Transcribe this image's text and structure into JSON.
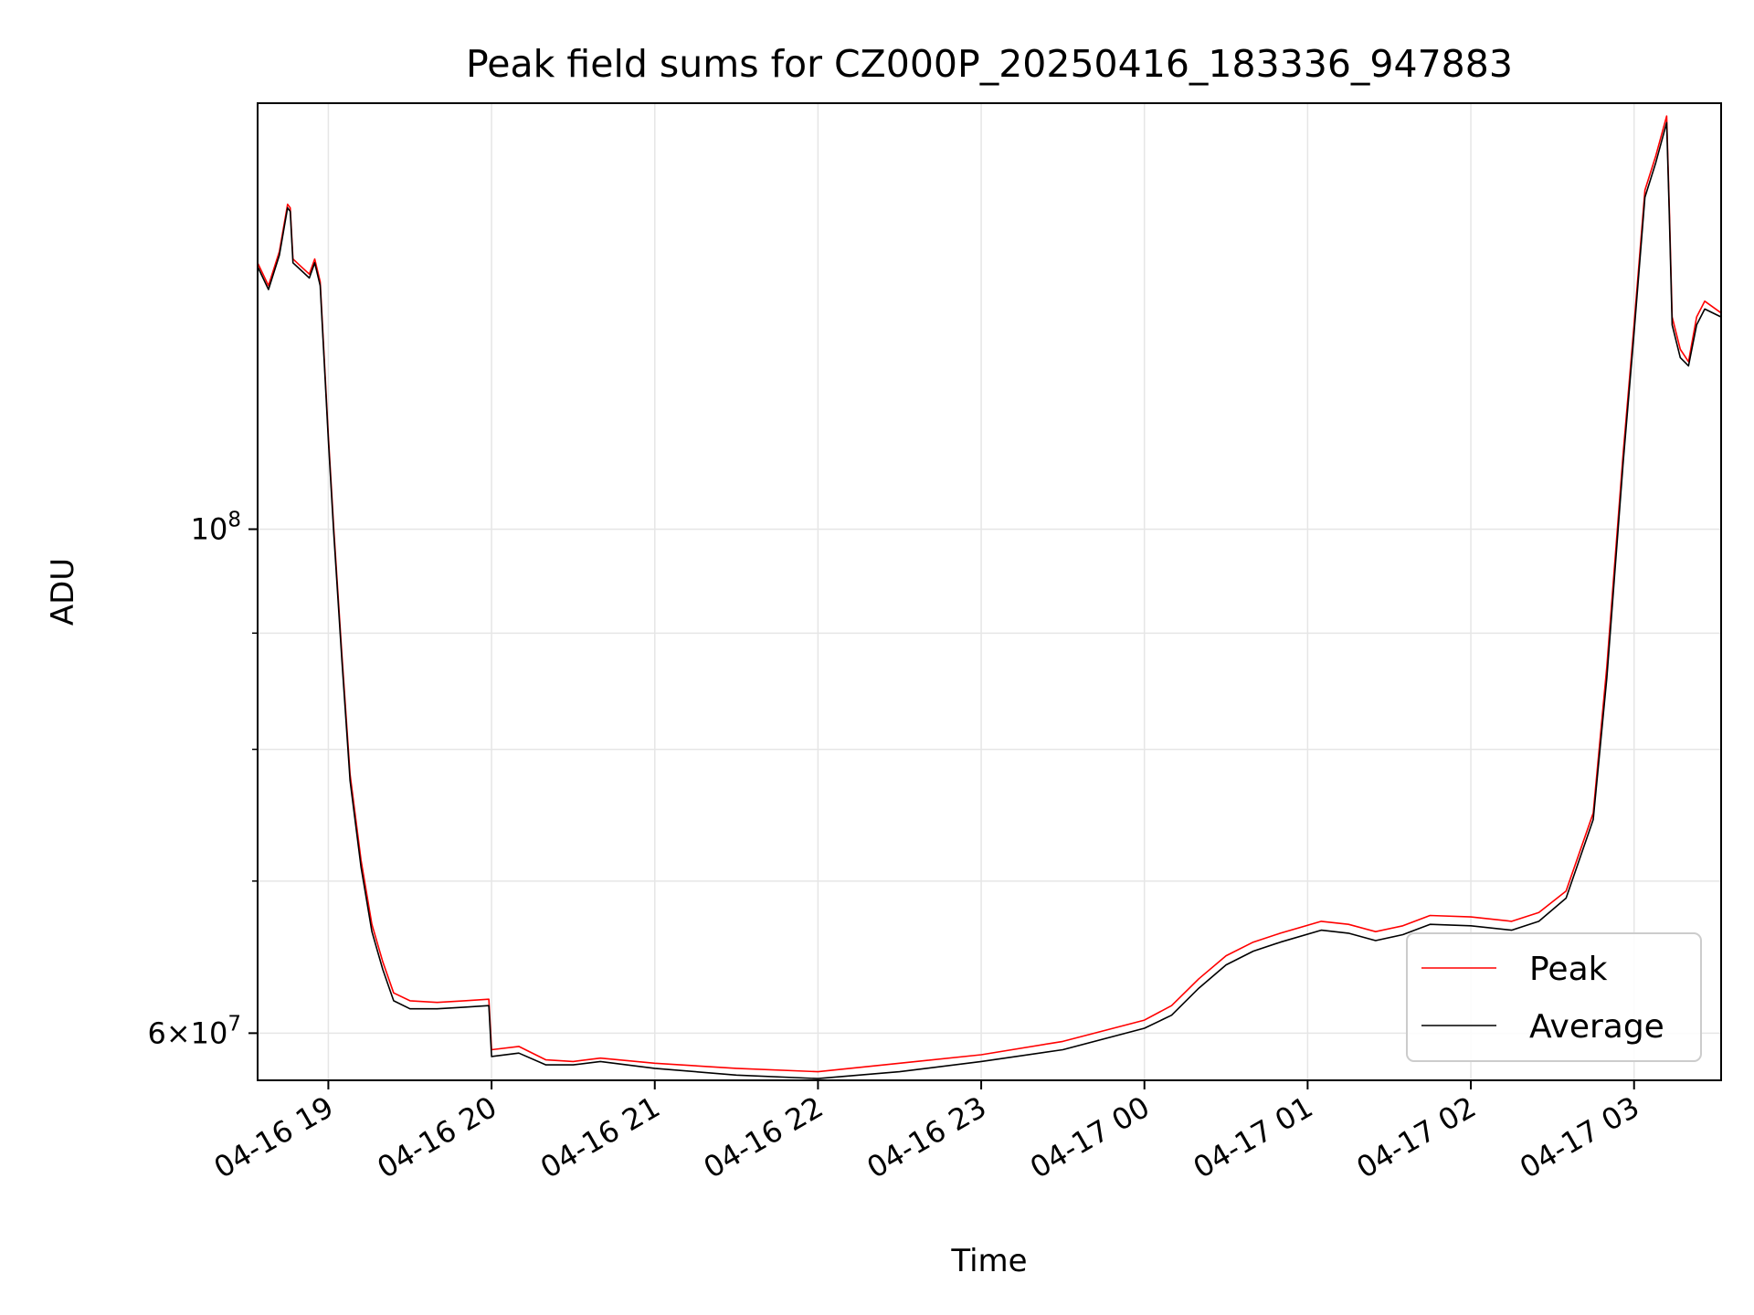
{
  "chart_data": {
    "type": "line",
    "title": "Peak field sums for CZ000P_20250416_183336_947883",
    "xlabel": "Time",
    "ylabel": "ADU",
    "y_scale": "log",
    "xlim": [
      "2025-04-16 18:34",
      "2025-04-17 03:32"
    ],
    "ylim": [
      57200000,
      154000000
    ],
    "x_ticks": [
      {
        "label": "04-16 19",
        "value": "2025-04-16 19:00"
      },
      {
        "label": "04-16 20",
        "value": "2025-04-16 20:00"
      },
      {
        "label": "04-16 21",
        "value": "2025-04-16 21:00"
      },
      {
        "label": "04-16 22",
        "value": "2025-04-16 22:00"
      },
      {
        "label": "04-16 23",
        "value": "2025-04-16 23:00"
      },
      {
        "label": "04-17 00",
        "value": "2025-04-17 00:00"
      },
      {
        "label": "04-17 01",
        "value": "2025-04-17 01:00"
      },
      {
        "label": "04-17 02",
        "value": "2025-04-17 02:00"
      },
      {
        "label": "04-17 03",
        "value": "2025-04-17 03:00"
      }
    ],
    "y_major_ticks": [
      {
        "base": "10",
        "exp": "8",
        "value": 100000000
      },
      {
        "mantissa": "6",
        "base": "10",
        "exp": "7",
        "value": 60000000
      }
    ],
    "y_minor_ticks": [
      70000000,
      80000000,
      90000000
    ],
    "grid": true,
    "legend": {
      "placement": "lower right"
    },
    "series": [
      {
        "name": "Peak",
        "color": "#ff0000",
        "points": [
          [
            "2025-04-16 18:34",
            131000000
          ],
          [
            "2025-04-16 18:38",
            128000000
          ],
          [
            "2025-04-16 18:42",
            132500000
          ],
          [
            "2025-04-16 18:45",
            139000000
          ],
          [
            "2025-04-16 18:46",
            138500000
          ],
          [
            "2025-04-16 18:47",
            131500000
          ],
          [
            "2025-04-16 18:50",
            130500000
          ],
          [
            "2025-04-16 18:53",
            129500000
          ],
          [
            "2025-04-16 18:55",
            131500000
          ],
          [
            "2025-04-16 18:57",
            128500000
          ],
          [
            "2025-04-16 19:00",
            110000000
          ],
          [
            "2025-04-16 19:02",
            100000000
          ],
          [
            "2025-04-16 19:05",
            88000000
          ],
          [
            "2025-04-16 19:08",
            78000000
          ],
          [
            "2025-04-16 19:12",
            71500000
          ],
          [
            "2025-04-16 19:16",
            67000000
          ],
          [
            "2025-04-16 19:20",
            64500000
          ],
          [
            "2025-04-16 19:24",
            62500000
          ],
          [
            "2025-04-16 19:30",
            62000000
          ],
          [
            "2025-04-16 19:40",
            61900000
          ],
          [
            "2025-04-16 19:50",
            62000000
          ],
          [
            "2025-04-16 19:59",
            62100000
          ],
          [
            "2025-04-16 20:00",
            59000000
          ],
          [
            "2025-04-16 20:10",
            59200000
          ],
          [
            "2025-04-16 20:20",
            58400000
          ],
          [
            "2025-04-16 20:30",
            58300000
          ],
          [
            "2025-04-16 20:40",
            58500000
          ],
          [
            "2025-04-16 21:00",
            58200000
          ],
          [
            "2025-04-16 21:30",
            57900000
          ],
          [
            "2025-04-16 22:00",
            57700000
          ],
          [
            "2025-04-16 22:30",
            58200000
          ],
          [
            "2025-04-16 23:00",
            58700000
          ],
          [
            "2025-04-16 23:30",
            59500000
          ],
          [
            "2025-04-17 00:00",
            60800000
          ],
          [
            "2025-04-17 00:10",
            61700000
          ],
          [
            "2025-04-17 00:20",
            63400000
          ],
          [
            "2025-04-17 00:30",
            64900000
          ],
          [
            "2025-04-17 00:40",
            65800000
          ],
          [
            "2025-04-17 00:50",
            66400000
          ],
          [
            "2025-04-17 01:05",
            67200000
          ],
          [
            "2025-04-17 01:15",
            67000000
          ],
          [
            "2025-04-17 01:25",
            66500000
          ],
          [
            "2025-04-17 01:35",
            66900000
          ],
          [
            "2025-04-17 01:45",
            67600000
          ],
          [
            "2025-04-17 02:00",
            67500000
          ],
          [
            "2025-04-17 02:15",
            67200000
          ],
          [
            "2025-04-17 02:25",
            67800000
          ],
          [
            "2025-04-17 02:35",
            69300000
          ],
          [
            "2025-04-17 02:45",
            75000000
          ],
          [
            "2025-04-17 02:50",
            87000000
          ],
          [
            "2025-04-17 02:53",
            97000000
          ],
          [
            "2025-04-17 02:56",
            108000000
          ],
          [
            "2025-04-17 03:00",
            123000000
          ],
          [
            "2025-04-17 03:04",
            141000000
          ],
          [
            "2025-04-17 03:08",
            146000000
          ],
          [
            "2025-04-17 03:12",
            152000000
          ],
          [
            "2025-04-17 03:13",
            138000000
          ],
          [
            "2025-04-17 03:14",
            124000000
          ],
          [
            "2025-04-17 03:17",
            120000000
          ],
          [
            "2025-04-17 03:20",
            118500000
          ],
          [
            "2025-04-17 03:23",
            124000000
          ],
          [
            "2025-04-17 03:26",
            126000000
          ],
          [
            "2025-04-17 03:32",
            124500000
          ]
        ]
      },
      {
        "name": "Average",
        "color": "#000000",
        "points": [
          [
            "2025-04-16 18:34",
            130500000
          ],
          [
            "2025-04-16 18:38",
            127500000
          ],
          [
            "2025-04-16 18:42",
            132000000
          ],
          [
            "2025-04-16 18:45",
            138500000
          ],
          [
            "2025-04-16 18:46",
            138000000
          ],
          [
            "2025-04-16 18:47",
            131000000
          ],
          [
            "2025-04-16 18:50",
            130000000
          ],
          [
            "2025-04-16 18:53",
            129000000
          ],
          [
            "2025-04-16 18:55",
            131000000
          ],
          [
            "2025-04-16 18:57",
            128000000
          ],
          [
            "2025-04-16 19:00",
            109500000
          ],
          [
            "2025-04-16 19:02",
            99500000
          ],
          [
            "2025-04-16 19:05",
            87500000
          ],
          [
            "2025-04-16 19:08",
            77500000
          ],
          [
            "2025-04-16 19:12",
            71000000
          ],
          [
            "2025-04-16 19:16",
            66500000
          ],
          [
            "2025-04-16 19:20",
            64000000
          ],
          [
            "2025-04-16 19:24",
            62000000
          ],
          [
            "2025-04-16 19:30",
            61500000
          ],
          [
            "2025-04-16 19:40",
            61500000
          ],
          [
            "2025-04-16 19:50",
            61600000
          ],
          [
            "2025-04-16 19:59",
            61700000
          ],
          [
            "2025-04-16 20:00",
            58600000
          ],
          [
            "2025-04-16 20:10",
            58800000
          ],
          [
            "2025-04-16 20:20",
            58100000
          ],
          [
            "2025-04-16 20:30",
            58100000
          ],
          [
            "2025-04-16 20:40",
            58300000
          ],
          [
            "2025-04-16 21:00",
            57900000
          ],
          [
            "2025-04-16 21:30",
            57500000
          ],
          [
            "2025-04-16 22:00",
            57300000
          ],
          [
            "2025-04-16 22:30",
            57700000
          ],
          [
            "2025-04-16 23:00",
            58300000
          ],
          [
            "2025-04-16 23:30",
            59000000
          ],
          [
            "2025-04-17 00:00",
            60300000
          ],
          [
            "2025-04-17 00:10",
            61100000
          ],
          [
            "2025-04-17 00:20",
            62800000
          ],
          [
            "2025-04-17 00:30",
            64300000
          ],
          [
            "2025-04-17 00:40",
            65200000
          ],
          [
            "2025-04-17 00:50",
            65800000
          ],
          [
            "2025-04-17 01:05",
            66600000
          ],
          [
            "2025-04-17 01:15",
            66400000
          ],
          [
            "2025-04-17 01:25",
            65900000
          ],
          [
            "2025-04-17 01:35",
            66300000
          ],
          [
            "2025-04-17 01:45",
            67000000
          ],
          [
            "2025-04-17 02:00",
            66900000
          ],
          [
            "2025-04-17 02:15",
            66600000
          ],
          [
            "2025-04-17 02:25",
            67200000
          ],
          [
            "2025-04-17 02:35",
            68800000
          ],
          [
            "2025-04-17 02:45",
            74500000
          ],
          [
            "2025-04-17 02:50",
            86000000
          ],
          [
            "2025-04-17 02:53",
            96000000
          ],
          [
            "2025-04-17 02:56",
            107000000
          ],
          [
            "2025-04-17 03:00",
            122000000
          ],
          [
            "2025-04-17 03:04",
            140000000
          ],
          [
            "2025-04-17 03:08",
            145000000
          ],
          [
            "2025-04-17 03:12",
            151000000
          ],
          [
            "2025-04-17 03:13",
            137000000
          ],
          [
            "2025-04-17 03:14",
            123000000
          ],
          [
            "2025-04-17 03:17",
            119000000
          ],
          [
            "2025-04-17 03:20",
            118000000
          ],
          [
            "2025-04-17 03:23",
            123000000
          ],
          [
            "2025-04-17 03:26",
            125000000
          ],
          [
            "2025-04-17 03:32",
            124000000
          ]
        ]
      }
    ]
  }
}
